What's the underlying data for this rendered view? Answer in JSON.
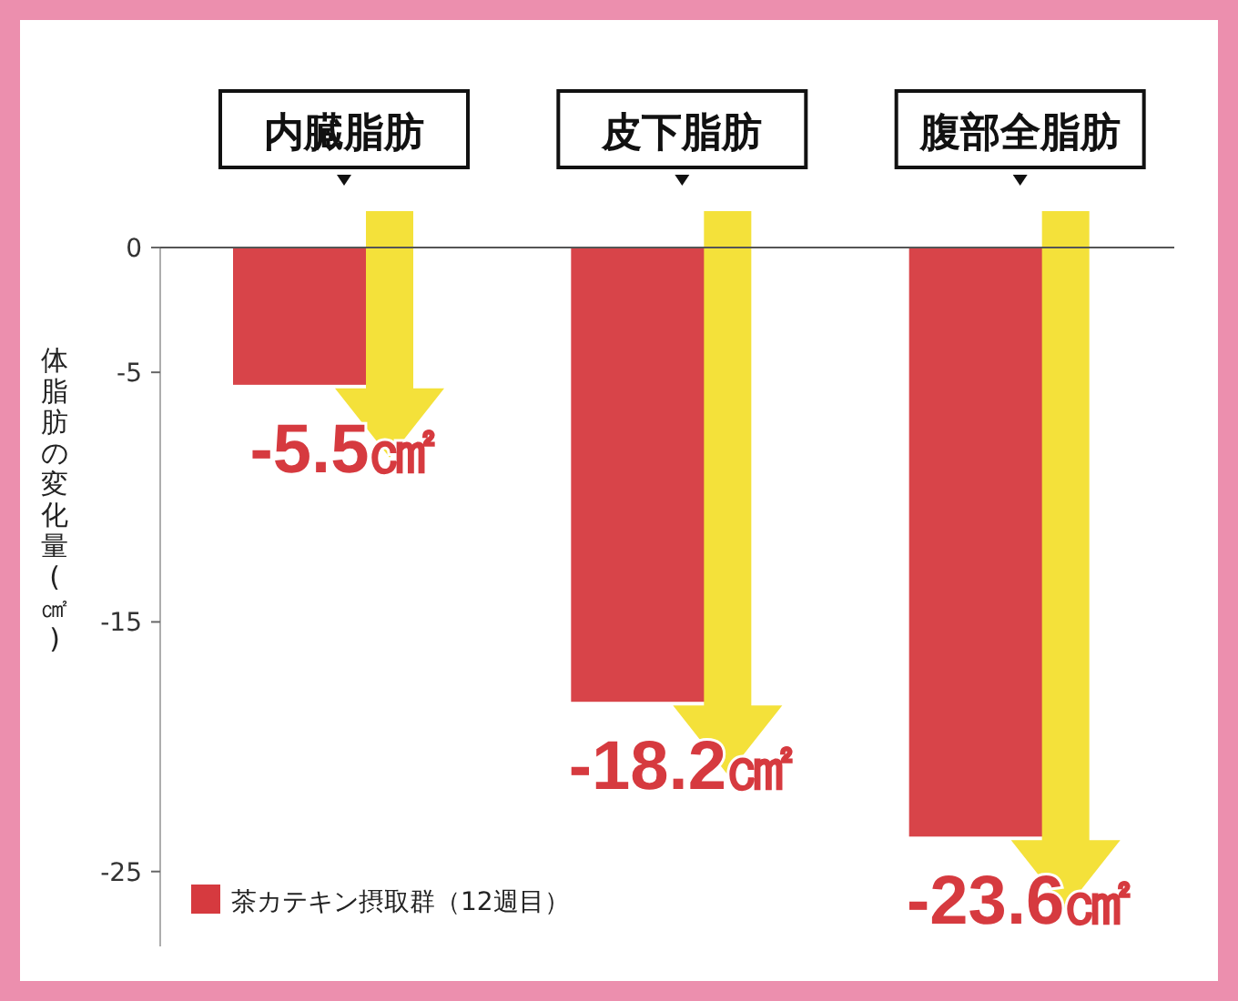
{
  "chart_data": {
    "type": "bar",
    "ylabel": "体脂肪の変化量(㎠)",
    "categories": [
      "内臓脂肪",
      "皮下脂肪",
      "腹部全脂肪"
    ],
    "series": [
      {
        "name": "茶カテキン摂取群（12週目）",
        "color": "#d63a3f",
        "values": [
          -5.5,
          -18.2,
          -23.6
        ],
        "value_labels": [
          "-5.5㎠",
          "-18.2㎠",
          "-23.6㎠"
        ]
      }
    ],
    "ylim": [
      -28,
      0
    ],
    "yticks": [
      0,
      -5,
      -15,
      -25
    ],
    "legend": "bottom left",
    "grid": false
  }
}
